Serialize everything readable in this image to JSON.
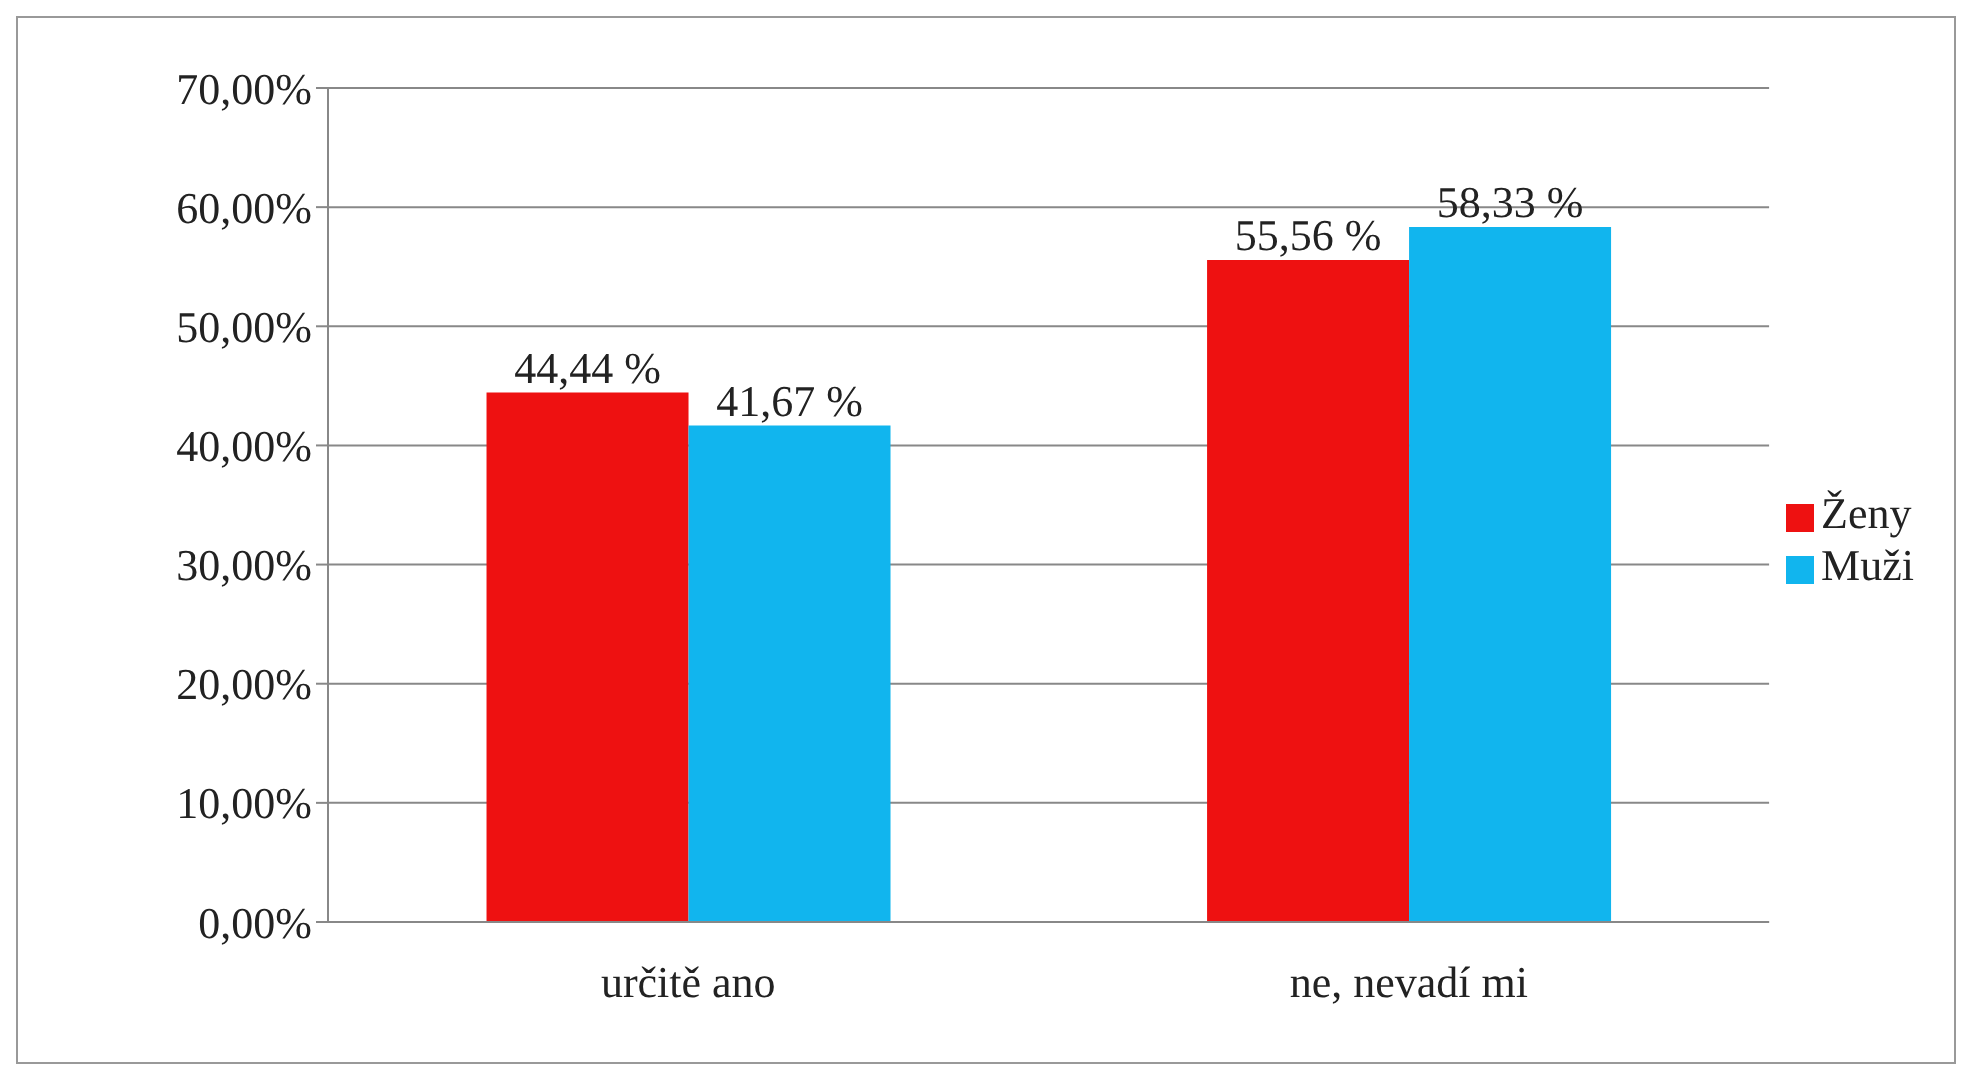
{
  "chart_data": {
    "type": "bar",
    "categories": [
      "určitě ano",
      "ne, nevadí mi"
    ],
    "series": [
      {
        "name": "Ženy",
        "color": "#ee1111",
        "values": [
          44.44,
          55.56
        ],
        "value_labels": [
          "44,44 %",
          "55,56 %"
        ]
      },
      {
        "name": "Muži",
        "color": "#11b5ee",
        "values": [
          41.67,
          58.33
        ],
        "value_labels": [
          "41,67 %",
          "58,33 %"
        ]
      }
    ],
    "ylim": [
      0,
      70
    ],
    "yticks": [
      {
        "value": 0,
        "label": "0,00%"
      },
      {
        "value": 10,
        "label": "10,00%"
      },
      {
        "value": 20,
        "label": "20,00%"
      },
      {
        "value": 30,
        "label": "30,00%"
      },
      {
        "value": 40,
        "label": "40,00%"
      },
      {
        "value": 50,
        "label": "50,00%"
      },
      {
        "value": 60,
        "label": "60,00%"
      },
      {
        "value": 70,
        "label": "70,00%"
      }
    ],
    "grid": "y",
    "legend": "right"
  }
}
